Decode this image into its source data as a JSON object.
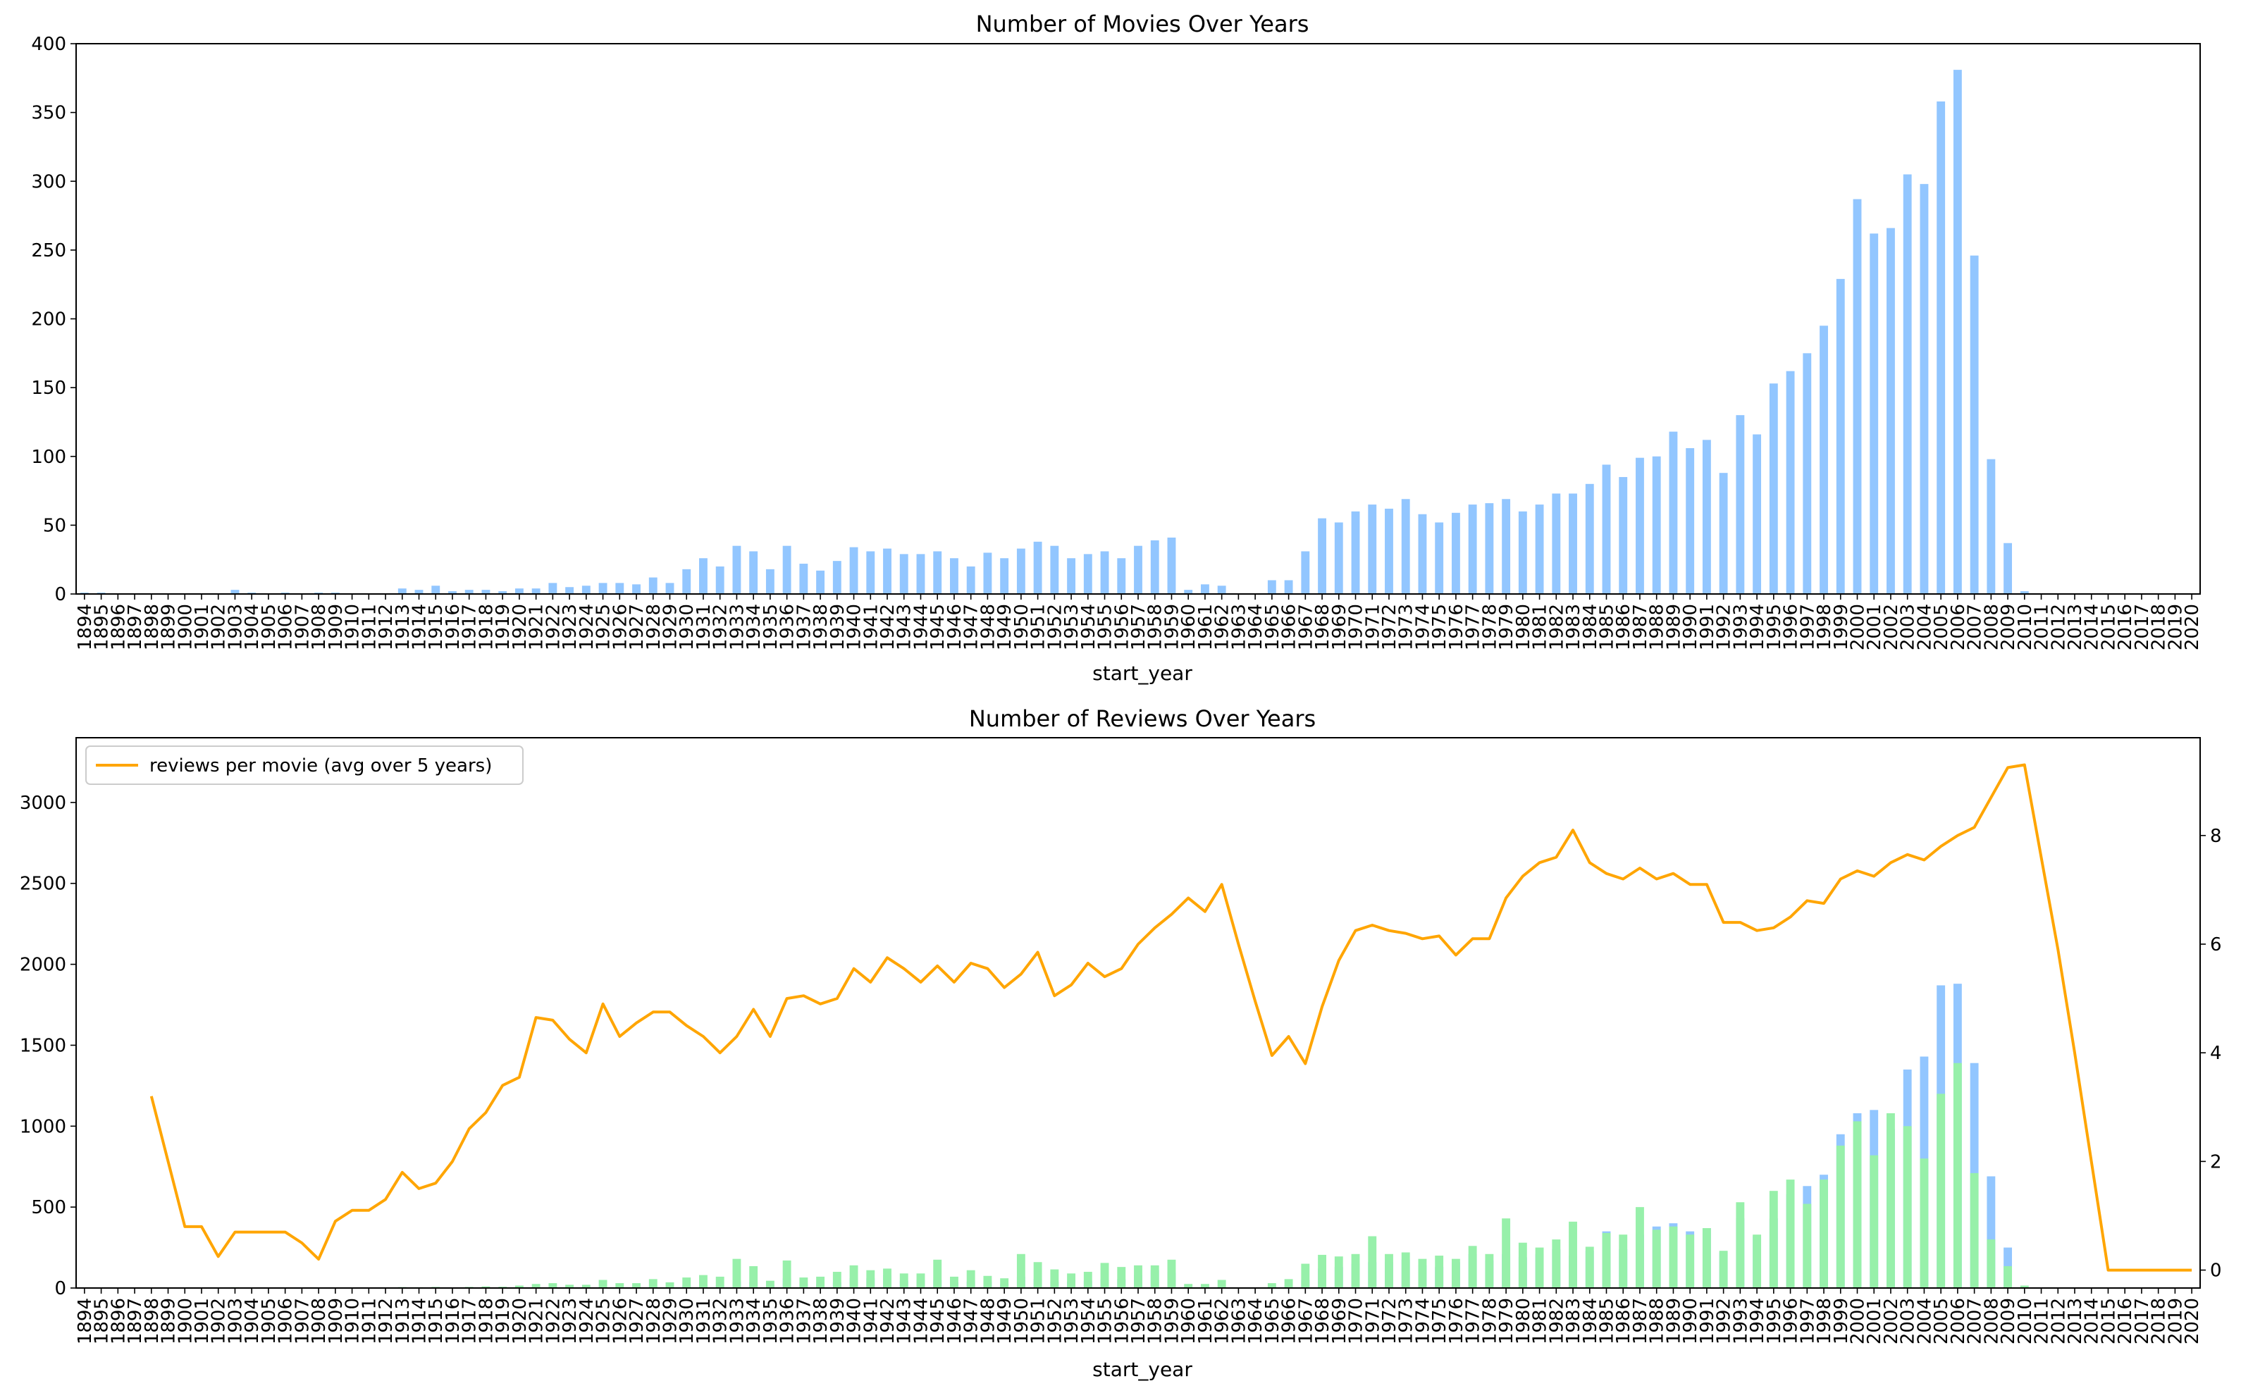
{
  "chart_data": [
    {
      "type": "bar",
      "title": "Number of Movies Over Years",
      "xlabel": "start_year",
      "ylabel": "",
      "ylim": [
        0,
        400
      ],
      "yticks": [
        0,
        50,
        100,
        150,
        200,
        250,
        300,
        350,
        400
      ],
      "color": "#92c6ff",
      "categories": [
        "1894",
        "1895",
        "1896",
        "1897",
        "1898",
        "1899",
        "1900",
        "1901",
        "1902",
        "1903",
        "1904",
        "1905",
        "1906",
        "1907",
        "1908",
        "1909",
        "1910",
        "1911",
        "1912",
        "1913",
        "1914",
        "1915",
        "1916",
        "1917",
        "1918",
        "1919",
        "1920",
        "1921",
        "1922",
        "1923",
        "1924",
        "1925",
        "1926",
        "1927",
        "1928",
        "1929",
        "1930",
        "1931",
        "1932",
        "1933",
        "1934",
        "1935",
        "1936",
        "1937",
        "1938",
        "1939",
        "1940",
        "1941",
        "1942",
        "1943",
        "1944",
        "1945",
        "1946",
        "1947",
        "1948",
        "1949",
        "1950",
        "1951",
        "1952",
        "1953",
        "1954",
        "1955",
        "1956",
        "1957",
        "1958",
        "1959",
        "1960",
        "1961",
        "1962",
        "1963",
        "1964",
        "1965",
        "1966",
        "1967",
        "1968",
        "1969",
        "1970",
        "1971",
        "1972",
        "1973",
        "1974",
        "1975",
        "1976",
        "1977",
        "1978",
        "1979",
        "1980",
        "1981",
        "1982",
        "1983",
        "1984",
        "1985",
        "1986",
        "1987",
        "1988",
        "1989",
        "1990",
        "1991",
        "1992",
        "1993",
        "1994",
        "1995",
        "1996",
        "1997",
        "1998",
        "1999",
        "2000",
        "2001",
        "2002",
        "2003",
        "2004",
        "2005",
        "2006",
        "2007",
        "2008",
        "2009",
        "2010",
        "2011",
        "2012",
        "2013",
        "2014",
        "2015",
        "2016",
        "2017",
        "2018",
        "2019",
        "2020"
      ],
      "values": [
        1,
        1,
        0,
        0,
        0,
        0,
        0,
        0,
        0,
        3,
        1,
        0,
        1,
        0,
        1,
        1,
        0,
        0,
        0,
        4,
        3,
        6,
        2,
        3,
        3,
        2,
        4,
        4,
        8,
        5,
        6,
        8,
        8,
        7,
        12,
        8,
        18,
        26,
        20,
        35,
        31,
        18,
        35,
        22,
        17,
        24,
        34,
        31,
        33,
        29,
        29,
        31,
        26,
        20,
        30,
        26,
        33,
        38,
        35,
        26,
        29,
        31,
        26,
        35,
        39,
        41,
        3,
        7,
        6,
        0,
        0,
        10,
        10,
        31,
        55,
        52,
        60,
        65,
        62,
        69,
        58,
        52,
        59,
        65,
        66,
        69,
        60,
        65,
        73,
        73,
        80,
        94,
        85,
        99,
        100,
        118,
        106,
        112,
        88,
        130,
        116,
        153,
        162,
        175,
        195,
        229,
        287,
        262,
        266,
        305,
        298,
        358,
        381,
        246,
        98,
        37,
        2,
        0,
        0,
        0,
        0,
        0,
        0,
        0,
        0,
        0,
        0
      ]
    },
    {
      "type": "bar",
      "title": "Number of Reviews Over Years",
      "xlabel": "start_year",
      "ylabel": "",
      "ylim": [
        0,
        3400
      ],
      "yticks": [
        0,
        500,
        1000,
        1500,
        2000,
        2500,
        3000
      ],
      "y2lim": [
        -0.33,
        9.8
      ],
      "y2ticks": [
        0,
        2,
        4,
        6,
        8
      ],
      "legend_position": "top-left",
      "categories": [
        "1894",
        "1895",
        "1896",
        "1897",
        "1898",
        "1899",
        "1900",
        "1901",
        "1902",
        "1903",
        "1904",
        "1905",
        "1906",
        "1907",
        "1908",
        "1909",
        "1910",
        "1911",
        "1912",
        "1913",
        "1914",
        "1915",
        "1916",
        "1917",
        "1918",
        "1919",
        "1920",
        "1921",
        "1922",
        "1923",
        "1924",
        "1925",
        "1926",
        "1927",
        "1928",
        "1929",
        "1930",
        "1931",
        "1932",
        "1933",
        "1934",
        "1935",
        "1936",
        "1937",
        "1938",
        "1939",
        "1940",
        "1941",
        "1942",
        "1943",
        "1944",
        "1945",
        "1946",
        "1947",
        "1948",
        "1949",
        "1950",
        "1951",
        "1952",
        "1953",
        "1954",
        "1955",
        "1956",
        "1957",
        "1958",
        "1959",
        "1960",
        "1961",
        "1962",
        "1963",
        "1964",
        "1965",
        "1966",
        "1967",
        "1968",
        "1969",
        "1970",
        "1971",
        "1972",
        "1973",
        "1974",
        "1975",
        "1976",
        "1977",
        "1978",
        "1979",
        "1980",
        "1981",
        "1982",
        "1983",
        "1984",
        "1985",
        "1986",
        "1987",
        "1988",
        "1989",
        "1990",
        "1991",
        "1992",
        "1993",
        "1994",
        "1995",
        "1996",
        "1997",
        "1998",
        "1999",
        "2000",
        "2001",
        "2002",
        "2003",
        "2004",
        "2005",
        "2006",
        "2007",
        "2008",
        "2009",
        "2010",
        "2011",
        "2012",
        "2013",
        "2014",
        "2015",
        "2016",
        "2017",
        "2018",
        "2019",
        "2020"
      ],
      "series": [
        {
          "color": "#92c6ff",
          "values": [
            2,
            2,
            0,
            0,
            0,
            0,
            0,
            0,
            0,
            3,
            1,
            0,
            1,
            0,
            1,
            1,
            0,
            0,
            0,
            3,
            3,
            4,
            2,
            3,
            4,
            3,
            6,
            8,
            8,
            6,
            6,
            10,
            8,
            8,
            12,
            10,
            15,
            20,
            18,
            40,
            35,
            20,
            60,
            25,
            25,
            35,
            60,
            60,
            80,
            45,
            50,
            50,
            35,
            40,
            40,
            25,
            70,
            55,
            40,
            40,
            45,
            55,
            55,
            80,
            110,
            95,
            5,
            10,
            5,
            0,
            0,
            10,
            15,
            50,
            120,
            130,
            150,
            160,
            160,
            175,
            140,
            130,
            160,
            210,
            170,
            210,
            190,
            210,
            240,
            200,
            230,
            350,
            240,
            330,
            380,
            400,
            350,
            370,
            220,
            430,
            320,
            430,
            580,
            630,
            700,
            950,
            1080,
            1100,
            980,
            1350,
            1430,
            1870,
            1880,
            1390,
            690,
            250,
            5,
            0,
            0,
            0,
            0,
            0,
            0,
            0,
            0,
            0,
            0
          ]
        },
        {
          "color": "#97f0aa",
          "values": [
            2,
            2,
            0,
            0,
            0,
            0,
            0,
            0,
            0,
            5,
            2,
            0,
            2,
            0,
            3,
            3,
            0,
            0,
            0,
            6,
            5,
            7,
            4,
            7,
            10,
            8,
            15,
            25,
            30,
            20,
            20,
            50,
            30,
            30,
            55,
            35,
            65,
            80,
            70,
            180,
            135,
            45,
            170,
            65,
            70,
            100,
            140,
            110,
            120,
            90,
            90,
            175,
            70,
            110,
            75,
            60,
            210,
            160,
            115,
            90,
            100,
            155,
            130,
            140,
            140,
            175,
            25,
            25,
            50,
            0,
            0,
            30,
            55,
            150,
            205,
            195,
            210,
            320,
            210,
            220,
            180,
            200,
            180,
            260,
            210,
            430,
            280,
            250,
            300,
            410,
            255,
            340,
            330,
            500,
            360,
            380,
            330,
            370,
            230,
            530,
            330,
            600,
            670,
            520,
            670,
            880,
            1030,
            820,
            1080,
            1000,
            800,
            1200,
            1390,
            710,
            300,
            135,
            15,
            0,
            0,
            0,
            0,
            0,
            0,
            0,
            0,
            0,
            0
          ]
        }
      ],
      "line": {
        "name": "reviews per movie (avg over 5 years)",
        "color": "#ffa500",
        "values": [
          null,
          null,
          null,
          null,
          3.2,
          null,
          0.8,
          0.8,
          0.25,
          0.7,
          0.7,
          0.7,
          0.7,
          0.5,
          0.2,
          0.9,
          1.1,
          1.1,
          1.3,
          1.8,
          1.5,
          1.6,
          2.0,
          2.6,
          2.9,
          3.4,
          3.55,
          4.65,
          4.6,
          4.25,
          4.0,
          4.9,
          4.3,
          4.55,
          4.75,
          4.75,
          4.5,
          4.3,
          4.0,
          4.3,
          4.8,
          4.3,
          5.0,
          5.05,
          4.9,
          5.0,
          5.55,
          5.3,
          5.75,
          5.55,
          5.3,
          5.6,
          5.3,
          5.65,
          5.55,
          5.2,
          5.45,
          5.85,
          5.05,
          5.25,
          5.65,
          5.4,
          5.55,
          6.0,
          6.3,
          6.55,
          6.85,
          6.6,
          7.1,
          6.0,
          4.95,
          3.95,
          4.3,
          3.8,
          4.85,
          5.7,
          6.25,
          6.35,
          6.25,
          6.2,
          6.1,
          6.15,
          5.8,
          6.1,
          6.1,
          6.85,
          7.25,
          7.5,
          7.6,
          8.1,
          7.5,
          7.3,
          7.2,
          7.4,
          7.2,
          7.3,
          7.1,
          7.1,
          6.4,
          6.4,
          6.25,
          6.3,
          6.5,
          6.8,
          6.75,
          7.2,
          7.35,
          7.25,
          7.5,
          7.65,
          7.55,
          7.8,
          8.0,
          8.15,
          8.7,
          9.25,
          9.3,
          7.6,
          5.9,
          4.0,
          2.0,
          0.0,
          0.0,
          0.0,
          0.0,
          0.0,
          0.0
        ]
      }
    }
  ]
}
